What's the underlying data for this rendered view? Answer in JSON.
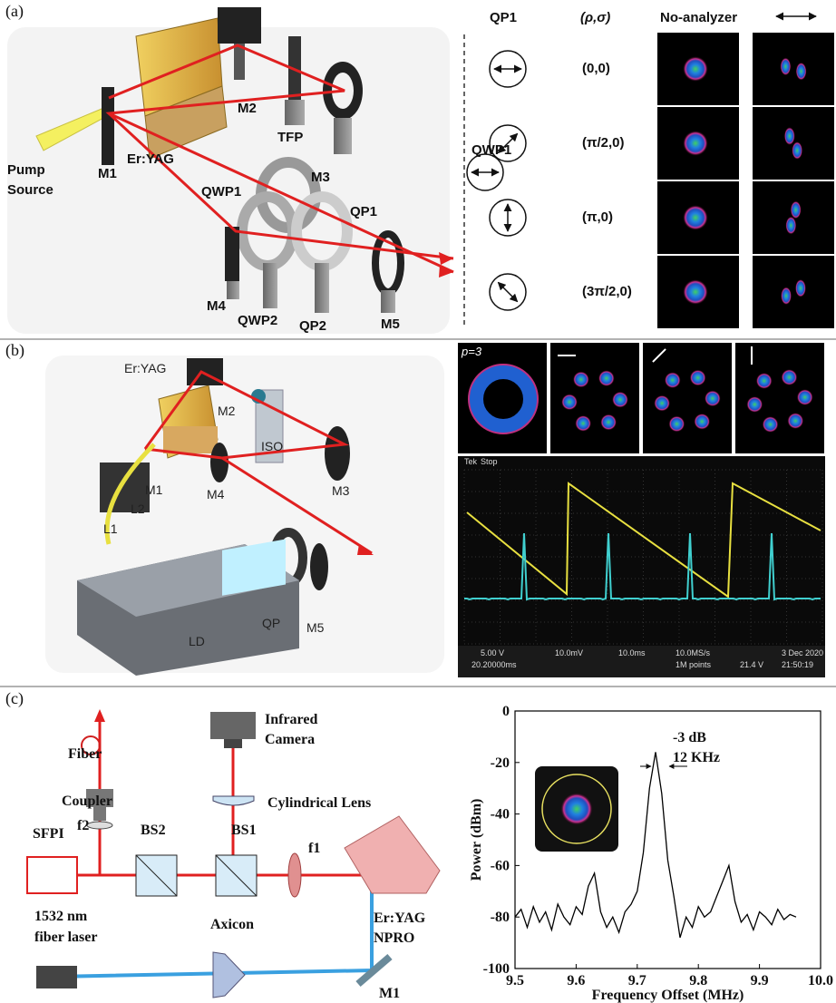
{
  "panel_labels": [
    "(a)",
    "(b)",
    "(c)"
  ],
  "a": {
    "setup": {
      "pump": [
        "Pump",
        "Source"
      ],
      "m1": "M1",
      "er_yag": "Er:YAG",
      "m2": "M2",
      "tfp": "TFP",
      "m3": "M3",
      "qwp1": "QWP1",
      "qp1": "QP1",
      "m4": "M4",
      "qwp2": "QWP2",
      "qp2": "QP2",
      "m5": "M5"
    },
    "modes": {
      "qp1_header": "QP1",
      "param_header": "(ρ,σ)",
      "no_analyzer": "No-analyzer",
      "qwp1": "QWP1",
      "rows": [
        "(0,0)",
        "(π/2,0)",
        "(π,0)",
        "(3π/2,0)"
      ]
    }
  },
  "b": {
    "setup": {
      "er_yag": "Er:YAG",
      "m2": "M2",
      "iso": "ISO",
      "m1": "M1",
      "l2": "L2",
      "l1": "L1",
      "m4": "M4",
      "m3": "M3",
      "qp": "QP",
      "m5": "M5",
      "ld": "LD"
    },
    "mode_label": "p=3",
    "scope": {
      "brand": "Tek",
      "state": "Stop",
      "ch1": "5.00 V",
      "ch2": "10.0mV",
      "timebase": "10.0ms",
      "rate": "10.0MS/s",
      "points": "1M points",
      "trigger": "21.4 V",
      "date": "3 Dec 2020",
      "time": "21:50:19",
      "delay": "20.20000ms"
    }
  },
  "c": {
    "setup": {
      "fiber": "Fiber",
      "coupler": "Coupler",
      "f2": "f2",
      "sfpi": "SFPI",
      "bs2": "BS2",
      "bs1": "BS1",
      "f1": "f1",
      "camera": [
        "Infrared",
        "Camera"
      ],
      "cyl_lens": "Cylindrical Lens",
      "npro": [
        "Er:YAG",
        "NPRO"
      ],
      "laser": [
        "1532 nm",
        "fiber laser"
      ],
      "axicon": "Axicon",
      "m1": "M1"
    }
  },
  "chart_data": {
    "type": "line",
    "xlabel": "Frequency Offset (MHz)",
    "ylabel": "Power (dBm)",
    "color": "#000000",
    "annotations": [
      "-3 dB",
      "12 KHz"
    ],
    "x": [
      9.5,
      9.51,
      9.52,
      9.53,
      9.54,
      9.55,
      9.56,
      9.57,
      9.58,
      9.59,
      9.6,
      9.61,
      9.62,
      9.63,
      9.64,
      9.65,
      9.66,
      9.67,
      9.68,
      9.69,
      9.7,
      9.71,
      9.72,
      9.73,
      9.74,
      9.75,
      9.76,
      9.77,
      9.78,
      9.79,
      9.8,
      9.81,
      9.82,
      9.83,
      9.84,
      9.85,
      9.86,
      9.87,
      9.88,
      9.89,
      9.9,
      9.91,
      9.92,
      9.93,
      9.94,
      9.95,
      9.96
    ],
    "values": [
      -80,
      -77,
      -84,
      -76,
      -82,
      -78,
      -85,
      -75,
      -80,
      -83,
      -76,
      -79,
      -68,
      -63,
      -78,
      -84,
      -80,
      -86,
      -78,
      -75,
      -70,
      -55,
      -30,
      -16,
      -32,
      -58,
      -72,
      -88,
      -80,
      -84,
      -76,
      -80,
      -78,
      -72,
      -66,
      -60,
      -74,
      -82,
      -79,
      -85,
      -78,
      -80,
      -83,
      -77,
      -81,
      -79,
      -80
    ],
    "xlim": [
      9.5,
      10
    ],
    "xticks": [
      9.5,
      9.6,
      9.7,
      9.8,
      9.9,
      {
        "value": 10,
        "label": "10.0"
      }
    ],
    "ylim": [
      -100,
      0
    ],
    "yticks": [
      -100,
      -80,
      -60,
      -40,
      -20,
      0
    ]
  }
}
